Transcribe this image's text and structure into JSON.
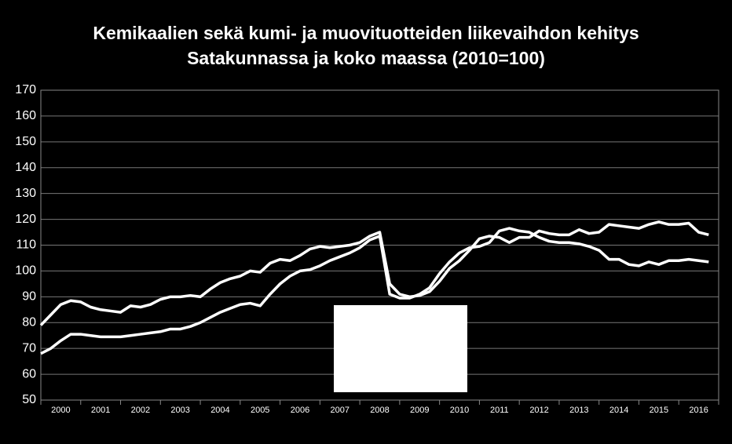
{
  "chart_data": {
    "type": "line",
    "title": "Kemikaalien sekä kumi- ja muovituotteiden liikevaihdon kehitys",
    "subtitle": "Satakunnassa ja koko maassa (2010=100)",
    "x": [
      2000,
      2000.25,
      2000.5,
      2000.75,
      2001,
      2001.25,
      2001.5,
      2001.75,
      2002,
      2002.25,
      2002.5,
      2002.75,
      2003,
      2003.25,
      2003.5,
      2003.75,
      2004,
      2004.25,
      2004.5,
      2004.75,
      2005,
      2005.25,
      2005.5,
      2005.75,
      2006,
      2006.25,
      2006.5,
      2006.75,
      2007,
      2007.25,
      2007.5,
      2007.75,
      2008,
      2008.25,
      2008.5,
      2008.75,
      2009,
      2009.25,
      2009.5,
      2009.75,
      2010,
      2010.25,
      2010.5,
      2010.75,
      2011,
      2011.25,
      2011.5,
      2011.75,
      2012,
      2012.25,
      2012.5,
      2012.75,
      2013,
      2013.25,
      2013.5,
      2013.75,
      2014,
      2014.25,
      2014.5,
      2014.75,
      2015,
      2015.25,
      2015.5,
      2015.75,
      2016,
      2016.25,
      2016.5,
      2016.75
    ],
    "series": [
      {
        "color": "#ffffff",
        "values": [
          79,
          83,
          87,
          88.5,
          88,
          86,
          85,
          84.5,
          84,
          86.5,
          86,
          87,
          89,
          90,
          90,
          90.5,
          90,
          93,
          95.5,
          97,
          98,
          100,
          99.5,
          103,
          104.5,
          104,
          106,
          108.5,
          109.5,
          109,
          109.5,
          110,
          111,
          113.5,
          115,
          95,
          91,
          90,
          90.5,
          92,
          96,
          101,
          104,
          108,
          112.5,
          113.5,
          113,
          111,
          113,
          113,
          115.5,
          114.5,
          114,
          114,
          116,
          114.5,
          115,
          118,
          117.5,
          117,
          116.5,
          118,
          119,
          118,
          118,
          118.5,
          115,
          114
        ]
      },
      {
        "color": "#ffffff",
        "values": [
          68,
          70,
          73,
          75.5,
          75.5,
          75,
          74.5,
          74.5,
          74.5,
          75,
          75.5,
          76,
          76.5,
          77.5,
          77.5,
          78.5,
          80,
          82,
          84,
          85.5,
          87,
          87.5,
          86.5,
          91,
          95,
          98,
          100,
          100.5,
          102,
          104,
          105.5,
          107,
          109,
          112,
          113.5,
          91,
          89.5,
          89.5,
          91,
          93.5,
          99,
          103.5,
          107,
          109,
          109.5,
          111,
          115.5,
          116.5,
          115.5,
          115,
          113,
          111.5,
          111,
          111,
          110.5,
          109.5,
          108,
          104.5,
          104.5,
          102.5,
          102,
          103.5,
          102.5,
          104,
          104,
          104.5,
          104,
          103.5
        ]
      }
    ],
    "xlim": [
      2000,
      2017
    ],
    "xticks": [
      {
        "value": 2000.5,
        "label": "2000"
      },
      {
        "value": 2001.5,
        "label": "2001"
      },
      {
        "value": 2002.5,
        "label": "2002"
      },
      {
        "value": 2003.5,
        "label": "2003"
      },
      {
        "value": 2004.5,
        "label": "2004"
      },
      {
        "value": 2005.5,
        "label": "2005"
      },
      {
        "value": 2006.5,
        "label": "2006"
      },
      {
        "value": 2007.5,
        "label": "2007"
      },
      {
        "value": 2008.5,
        "label": "2008"
      },
      {
        "value": 2009.5,
        "label": "2009"
      },
      {
        "value": 2010.5,
        "label": "2010"
      },
      {
        "value": 2011.5,
        "label": "2011"
      },
      {
        "value": 2012.5,
        "label": "2012"
      },
      {
        "value": 2013.5,
        "label": "2013"
      },
      {
        "value": 2014.5,
        "label": "2014"
      },
      {
        "value": 2015.5,
        "label": "2015"
      },
      {
        "value": 2016.5,
        "label": "2016"
      }
    ],
    "ylim": [
      50,
      170
    ],
    "yticks": [
      50,
      60,
      70,
      80,
      90,
      100,
      110,
      120,
      130,
      140,
      150,
      160,
      170
    ],
    "grid": true
  }
}
